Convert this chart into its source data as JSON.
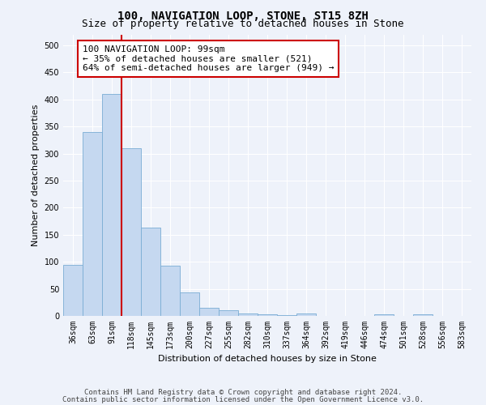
{
  "title": "100, NAVIGATION LOOP, STONE, ST15 8ZH",
  "subtitle": "Size of property relative to detached houses in Stone",
  "xlabel": "Distribution of detached houses by size in Stone",
  "ylabel": "Number of detached properties",
  "bin_labels": [
    "36sqm",
    "63sqm",
    "91sqm",
    "118sqm",
    "145sqm",
    "173sqm",
    "200sqm",
    "227sqm",
    "255sqm",
    "282sqm",
    "310sqm",
    "337sqm",
    "364sqm",
    "392sqm",
    "419sqm",
    "446sqm",
    "474sqm",
    "501sqm",
    "528sqm",
    "556sqm",
    "583sqm"
  ],
  "bar_heights": [
    95,
    340,
    410,
    310,
    163,
    93,
    43,
    15,
    10,
    5,
    3,
    1,
    5,
    0,
    0,
    0,
    3,
    0,
    3,
    0,
    0
  ],
  "bar_color": "#c5d8f0",
  "bar_edge_color": "#7aadd4",
  "vline_x": 2.5,
  "vline_color": "#cc0000",
  "annotation_text": "100 NAVIGATION LOOP: 99sqm\n← 35% of detached houses are smaller (521)\n64% of semi-detached houses are larger (949) →",
  "annotation_box_color": "#ffffff",
  "annotation_box_edge_color": "#cc0000",
  "ylim": [
    0,
    520
  ],
  "yticks": [
    0,
    50,
    100,
    150,
    200,
    250,
    300,
    350,
    400,
    450,
    500
  ],
  "footer_line1": "Contains HM Land Registry data © Crown copyright and database right 2024.",
  "footer_line2": "Contains public sector information licensed under the Open Government Licence v3.0.",
  "bg_color": "#eef2fa",
  "grid_color": "#ffffff",
  "title_fontsize": 10,
  "subtitle_fontsize": 9,
  "axis_label_fontsize": 8,
  "tick_fontsize": 7,
  "annotation_fontsize": 8,
  "footer_fontsize": 6.5
}
